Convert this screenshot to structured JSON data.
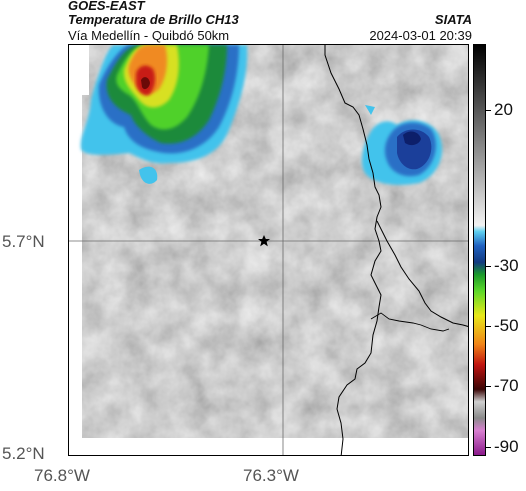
{
  "header": {
    "source": "GOES-EAST",
    "product": "Temperatura de Brillo CH13",
    "region": "Vía Medellín - Quibdó 50km",
    "brand": "SIATA",
    "timestamp": "2024-03-01 20:39"
  },
  "axes": {
    "lat_labels": [
      "5.7°N",
      "5.2°N"
    ],
    "lon_labels": [
      "76.8°W",
      "76.3°W"
    ]
  },
  "colorbar": {
    "ticks": [
      "20",
      "-30",
      "-50",
      "-70",
      "-90"
    ]
  },
  "marker": {
    "icon": "star-icon"
  }
}
